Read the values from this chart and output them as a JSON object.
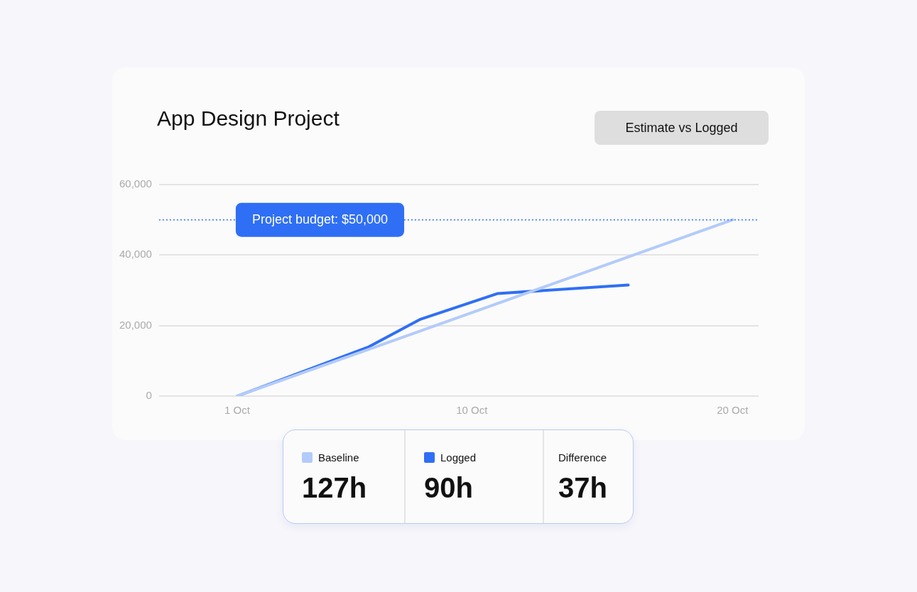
{
  "chart_data": {
    "type": "line",
    "title": "App Design Project",
    "x": [
      "--10-01",
      "--10-20"
    ],
    "series": [
      {
        "name": "Baseline",
        "color": "#b3cbfb",
        "values": [
          0,
          50000
        ]
      },
      {
        "name": "Logged",
        "color": "#2f6ff5",
        "x": [
          "--10-01",
          "--10-06",
          "--10-08",
          "--10-11",
          "--10-16"
        ],
        "values": [
          0,
          13800,
          21700,
          29100,
          31500
        ]
      }
    ],
    "xlim": [
      "--09-28",
      "--10-21"
    ],
    "xticks": [
      {
        "value": "--10-01",
        "label": "1 Oct"
      },
      {
        "value": "--10-10",
        "label": "10 Oct"
      },
      {
        "value": "--10-20",
        "label": "20 Oct"
      }
    ],
    "ylim": [
      0,
      60000
    ],
    "yticks": [
      {
        "value": 0,
        "label": "0"
      },
      {
        "value": 20000,
        "label": "20,000"
      },
      {
        "value": 40000,
        "label": "40,000"
      },
      {
        "value": 60000,
        "label": "60,000"
      }
    ],
    "ref_lines": [
      {
        "axis": "y",
        "value": 50000,
        "label": "Project budget: $50,000",
        "color": "#2f6ff5",
        "line_style": "dotted"
      }
    ],
    "grid": "y",
    "legend": "bottom",
    "marker": "none",
    "annotations": [
      "Estimate vs Logged",
      "127h",
      "90h",
      "Difference",
      "37h"
    ]
  }
}
